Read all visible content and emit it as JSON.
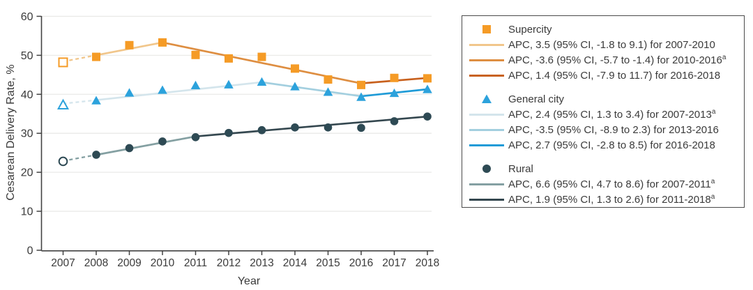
{
  "figure": {
    "background": "#ffffff",
    "text_color": "#3a3a3a",
    "axis_color": "#424242",
    "grid_color": "#eaeae8",
    "legend_border_color": "#4a4a4a"
  },
  "chart_data": {
    "type": "line",
    "xlabel": "Year",
    "ylabel": "Cesarean Delivery Rate, %",
    "x": [
      2007,
      2008,
      2009,
      2010,
      2011,
      2012,
      2013,
      2014,
      2015,
      2016,
      2017,
      2018
    ],
    "ylim": [
      0,
      60
    ],
    "yticks": [
      0,
      10,
      20,
      30,
      40,
      50,
      60
    ],
    "grid": true,
    "legend_position": "right",
    "note": "2007 markers are open symbols connected by dashed trend segments",
    "series": [
      {
        "name": "Supercity",
        "marker": "square",
        "marker_color": "#F59B26",
        "open_first_marker": true,
        "values": [
          48.2,
          49.6,
          52.6,
          53.3,
          50.1,
          49.2,
          49.6,
          46.6,
          43.8,
          42.4,
          44.2,
          44.1
        ],
        "trend_segments": [
          {
            "from": 2007,
            "to": 2010,
            "y_from": 48.4,
            "y_to": 53.3,
            "color": "#F1C68B",
            "dash_before": 2008,
            "apc_label": "APC, 3.5 (95% CI, -1.8 to 9.1) for 2007-2010",
            "sup": ""
          },
          {
            "from": 2010,
            "to": 2016,
            "y_from": 53.3,
            "y_to": 42.8,
            "color": "#DE8E41",
            "apc_label": "APC, -3.6 (95% CI, -5.7 to -1.4) for 2010-2016",
            "sup": "a"
          },
          {
            "from": 2016,
            "to": 2018,
            "y_from": 42.8,
            "y_to": 44.2,
            "color": "#C8611E",
            "apc_label": "APC, 1.4 (95% CI, -7.9 to 11.7) for 2016-2018",
            "sup": ""
          }
        ]
      },
      {
        "name": "General city",
        "marker": "triangle",
        "marker_color": "#2CA2DC",
        "open_first_marker": true,
        "values": [
          37.2,
          38.3,
          40.3,
          41.0,
          42.2,
          42.4,
          43.1,
          41.9,
          40.5,
          39.2,
          40.2,
          41.2
        ],
        "trend_segments": [
          {
            "from": 2007,
            "to": 2013,
            "y_from": 37.6,
            "y_to": 43.1,
            "color": "#D4E5EC",
            "dash_before": 2008,
            "apc_label": "APC, 2.4 (95% CI, 1.3 to 3.4) for 2007-2013",
            "sup": "a"
          },
          {
            "from": 2013,
            "to": 2016,
            "y_from": 43.1,
            "y_to": 39.5,
            "color": "#A3CFDF",
            "apc_label": "APC, -3.5 (95% CI, -8.9 to 2.3) for 2013-2016",
            "sup": ""
          },
          {
            "from": 2016,
            "to": 2018,
            "y_from": 39.5,
            "y_to": 41.3,
            "color": "#1F9BD7",
            "apc_label": "APC, 2.7 (95% CI, -2.8 to 8.5) for 2016-2018",
            "sup": ""
          }
        ]
      },
      {
        "name": "Rural",
        "marker": "circle",
        "marker_color": "#2E4A54",
        "open_first_marker": true,
        "values": [
          22.8,
          24.5,
          26.2,
          27.9,
          29.0,
          30.1,
          30.8,
          31.5,
          31.5,
          31.4,
          33.1,
          34.3
        ],
        "trend_segments": [
          {
            "from": 2007,
            "to": 2011,
            "y_from": 22.9,
            "y_to": 29.2,
            "color": "#84A0A2",
            "dash_before": 2008,
            "apc_label": "APC, 6.6 (95% CI, 4.7 to 8.6) for 2007-2011",
            "sup": "a"
          },
          {
            "from": 2011,
            "to": 2018,
            "y_from": 29.2,
            "y_to": 34.3,
            "color": "#34474F",
            "apc_label": "APC, 1.9 (95% CI, 1.3 to 2.6) for 2011-2018",
            "sup": "a"
          }
        ]
      }
    ]
  }
}
